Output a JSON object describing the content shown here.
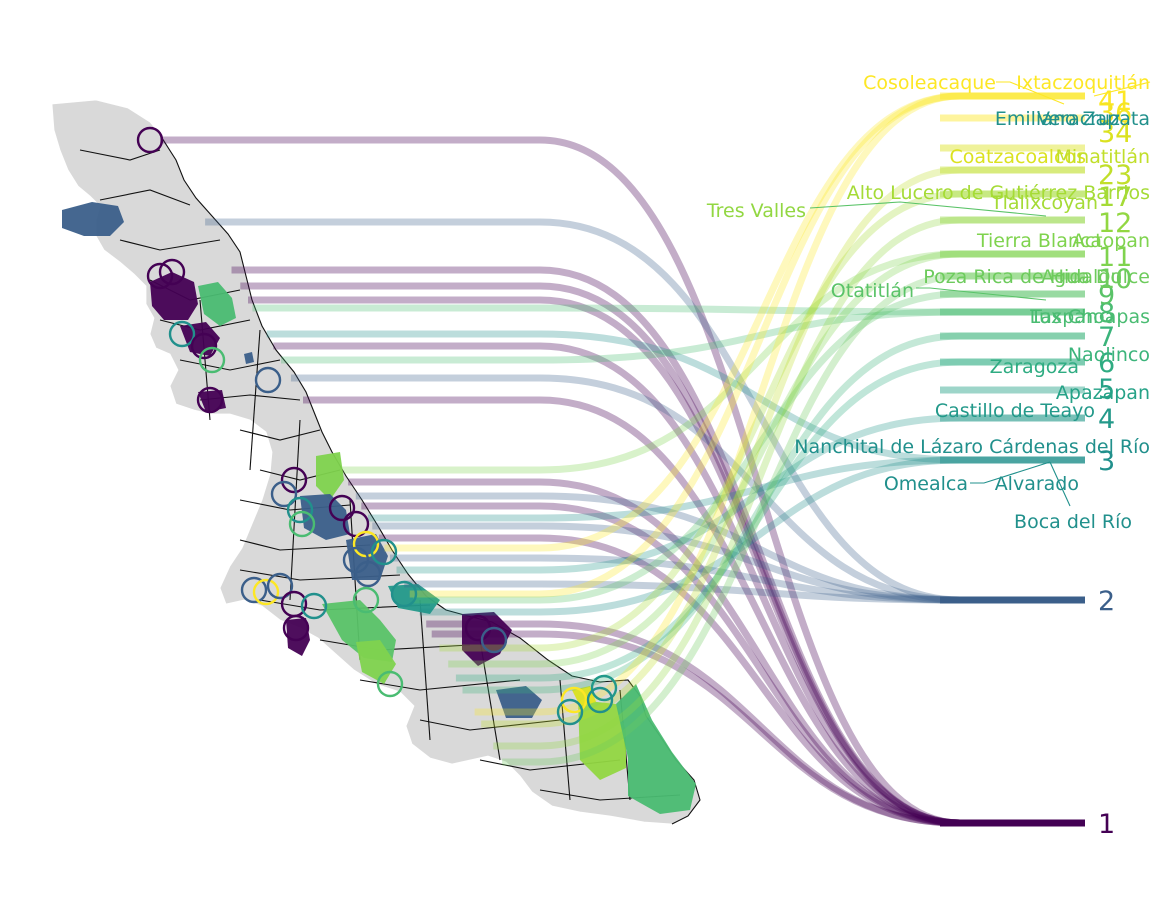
{
  "palette": {
    "1": "#440154",
    "2": "#3b5f8a",
    "3": "#21908c",
    "4": "#23998a",
    "5": "#26a287",
    "6": "#2fac82",
    "7": "#3bb47b",
    "8": "#4abc72",
    "9": "#5ac368",
    "10": "#6dcb5c",
    "11": "#7fd34e",
    "12": "#92d742",
    "17": "#a5db36",
    "23": "#c1df2a",
    "34": "#dbe21f",
    "41": "#fde725",
    "missing": "#d9d9d9"
  },
  "icons": {
    "map": "veracruz-map-icon"
  },
  "ranks": [
    {
      "rank": 1,
      "label": "1",
      "color": "#440154"
    },
    {
      "rank": 2,
      "label": "2",
      "color": "#3b5f8a"
    },
    {
      "rank": 3,
      "label": "3",
      "color": "#21908c"
    },
    {
      "rank": 4,
      "label": "4",
      "color": "#23998a"
    },
    {
      "rank": 5,
      "label": "5",
      "color": "#26a287"
    },
    {
      "rank": 6,
      "label": "6",
      "color": "#2fac82"
    },
    {
      "rank": 7,
      "label": "7",
      "color": "#3bb47b"
    },
    {
      "rank": 8,
      "label": "8",
      "color": "#4abc72"
    },
    {
      "rank": 9,
      "label": "9",
      "color": "#5ac368"
    },
    {
      "rank": 10,
      "label": "10",
      "color": "#6dcb5c"
    },
    {
      "rank": 11,
      "label": "11",
      "color": "#7fd34e"
    },
    {
      "rank": 12,
      "label": "12",
      "color": "#92d742"
    },
    {
      "rank": 17,
      "label": "17",
      "color": "#a5db36"
    },
    {
      "rank": 23,
      "label": "23",
      "color": "#c1df2a"
    },
    {
      "rank": 34,
      "label": "34",
      "color": "#dbe21f"
    },
    {
      "rank": 41,
      "label": "41",
      "color": "#fde725"
    },
    {
      "rank": 36,
      "label": "36",
      "color": "#f5e523"
    }
  ],
  "municipalities": [
    {
      "name": "Cosoleacaque",
      "rank": 41
    },
    {
      "name": "Ixtaczoquitlán",
      "rank": 41
    },
    {
      "name": "Emiliano Zapata",
      "rank": 36
    },
    {
      "name": "Veracruz",
      "rank": 36
    },
    {
      "name": "Coatzacoalcos",
      "rank": 34
    },
    {
      "name": "Minatitlán",
      "rank": 23
    },
    {
      "name": "Alto Lucero de Gutiérrez Barrios",
      "rank": 17
    },
    {
      "name": "Tlalixcoyan",
      "rank": 17
    },
    {
      "name": "Tres Valles",
      "rank": 12
    },
    {
      "name": "Tierra Blanca",
      "rank": 11
    },
    {
      "name": "Actopan",
      "rank": 11
    },
    {
      "name": "Poza Rica de Hidalgo",
      "rank": 10
    },
    {
      "name": "Agua Dulce",
      "rank": 10
    },
    {
      "name": "Otatitlán",
      "rank": 9
    },
    {
      "name": "Las Choapas",
      "rank": 8
    },
    {
      "name": "Tuxpan",
      "rank": 8
    },
    {
      "name": "Naolinco",
      "rank": 7
    },
    {
      "name": "Zaragoza",
      "rank": 6
    },
    {
      "name": "Apazapan",
      "rank": 5
    },
    {
      "name": "Castillo de Teayo",
      "rank": 4
    },
    {
      "name": "Nanchital de Lázaro Cárdenas del Río",
      "rank": 3
    },
    {
      "name": "Omealca",
      "rank": 3
    },
    {
      "name": "Alvarado",
      "rank": 3
    },
    {
      "name": "Boca del Río",
      "rank": 3
    }
  ]
}
